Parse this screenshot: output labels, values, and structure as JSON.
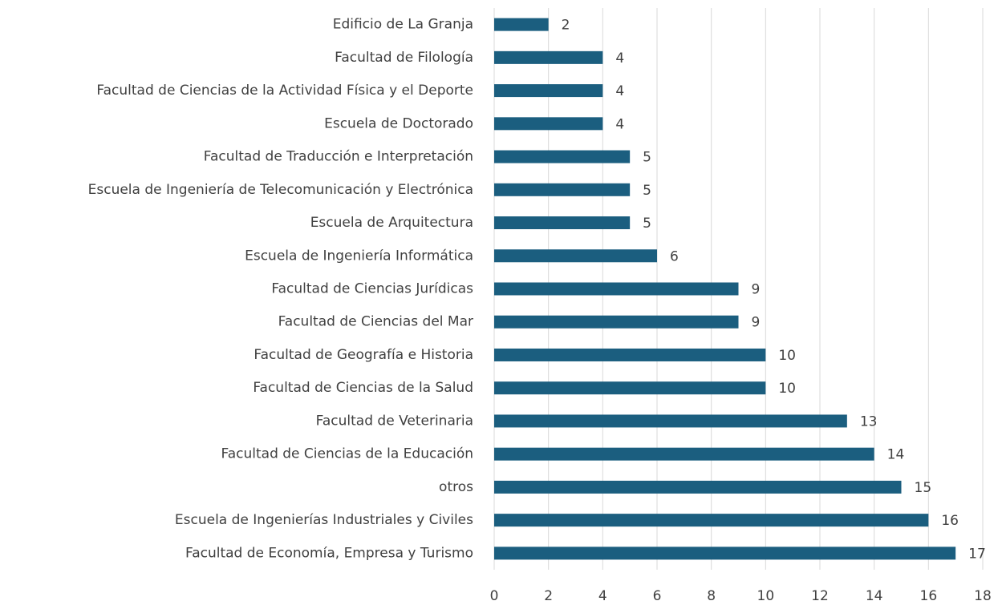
{
  "chart_data": {
    "type": "bar",
    "orientation": "horizontal",
    "categories": [
      "Edificio de La Granja",
      "Facultad de Filología",
      "Facultad de Ciencias de la Actividad Física y el Deporte",
      "Escuela de Doctorado",
      "Facultad de Traducción e Interpretación",
      "Escuela de Ingeniería de Telecomunicación y Electrónica",
      "Escuela de Arquitectura",
      "Escuela de Ingeniería Informática",
      "Facultad de Ciencias Jurídicas",
      "Facultad de Ciencias del Mar",
      "Facultad de Geografía e Historia",
      "Facultad de Ciencias de la Salud",
      "Facultad de Veterinaria",
      "Facultad de Ciencias de la Educación",
      "otros",
      "Escuela de Ingenierías Industriales y Civiles",
      "Facultad de Economía, Empresa y Turismo"
    ],
    "values": [
      2,
      4,
      4,
      4,
      5,
      5,
      5,
      6,
      9,
      9,
      10,
      10,
      13,
      14,
      15,
      16,
      17
    ],
    "color": "#1b5e7f",
    "xlim": [
      0,
      18
    ],
    "xticks": [
      0,
      2,
      4,
      6,
      8,
      10,
      12,
      14,
      16,
      18
    ],
    "grid": true
  }
}
